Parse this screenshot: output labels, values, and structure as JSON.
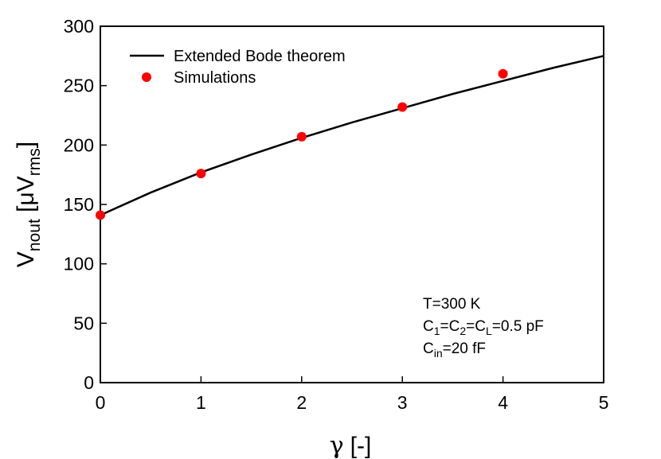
{
  "chart_data": {
    "type": "line",
    "xlabel": {
      "symbol": "γ",
      "unit": "[-]"
    },
    "ylabel": {
      "main": "V",
      "sub1": "nout",
      "mid": " [μV",
      "sub2": "rms",
      "end": "]"
    },
    "xlim": [
      0,
      5
    ],
    "ylim": [
      0,
      300
    ],
    "xticks": [
      0,
      1,
      2,
      3,
      4,
      5
    ],
    "yticks": [
      0,
      50,
      100,
      150,
      200,
      250,
      300
    ],
    "grid": false,
    "legend_position": "top-left",
    "series": [
      {
        "name": "Extended Bode theorem",
        "kind": "line",
        "color": "#000000",
        "x": [
          0,
          0.5,
          1,
          1.5,
          2,
          2.5,
          3,
          3.5,
          4,
          4.5,
          5
        ],
        "y": [
          141,
          160,
          177,
          192,
          206,
          219,
          231,
          243,
          254,
          265,
          275
        ]
      },
      {
        "name": "Simulations",
        "kind": "scatter",
        "color": "#ff0000",
        "x": [
          0,
          1,
          2,
          3,
          4
        ],
        "y": [
          141,
          176,
          207,
          232,
          260
        ]
      }
    ],
    "annotations": [
      {
        "line": [
          {
            "t": "T=300 K"
          }
        ]
      },
      {
        "line": [
          {
            "t": "C"
          },
          {
            "t": "1",
            "sub": true
          },
          {
            "t": "=C"
          },
          {
            "t": "2",
            "sub": true
          },
          {
            "t": "=C"
          },
          {
            "t": "L",
            "sub": true
          },
          {
            "t": "=0.5 pF"
          }
        ]
      },
      {
        "line": [
          {
            "t": "C"
          },
          {
            "t": "in",
            "sub": true
          },
          {
            "t": "=20 fF"
          }
        ]
      }
    ]
  }
}
